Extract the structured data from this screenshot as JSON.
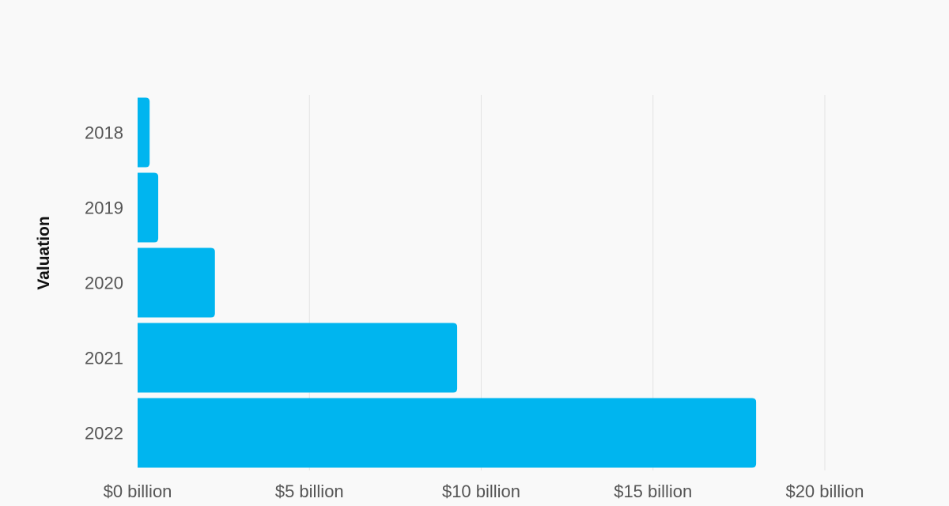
{
  "chart_data": {
    "type": "bar",
    "orientation": "horizontal",
    "title": "",
    "xlabel": "",
    "ylabel": "Valuation",
    "categories": [
      "2018",
      "2019",
      "2020",
      "2021",
      "2022"
    ],
    "values": [
      0.35,
      0.6,
      2.25,
      9.3,
      18.0
    ],
    "unit": "billion USD",
    "xlim": [
      0,
      20
    ],
    "x_ticks": [
      {
        "value": 0,
        "label": "$0 billion"
      },
      {
        "value": 5,
        "label": "$5 billion"
      },
      {
        "value": 10,
        "label": "$10 billion"
      },
      {
        "value": 15,
        "label": "$15 billion"
      },
      {
        "value": 20,
        "label": "$20 billion"
      }
    ],
    "grid": "vertical",
    "legend": "none",
    "bar_color": "#00b5ef",
    "grid_color": "#e3e3e3"
  }
}
